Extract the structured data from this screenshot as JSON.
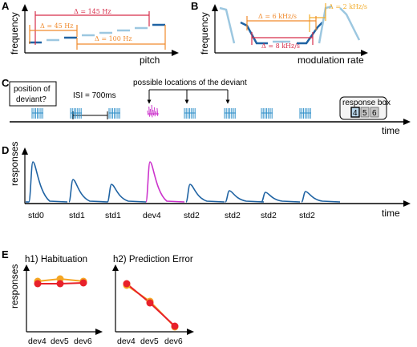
{
  "colors": {
    "red": "#d62d4a",
    "orange": "#f08a2c",
    "dark_blue": "#1f63a3",
    "light_blue": "#9cc7e0",
    "stim_blue": "#2e8fc9",
    "magenta": "#cc33cc",
    "gold": "#f2ad2c",
    "h_red": "#e8212a",
    "h_orange": "#f5a623"
  },
  "panel_a": {
    "letter": "A",
    "ylabel": "frequency",
    "xlabel": "pitch",
    "delta_145": "Δ = 145 Hz",
    "delta_45": "Δ = 45 Hz",
    "delta_100": "Δ = 100 Hz"
  },
  "panel_b": {
    "letter": "B",
    "ylabel": "frequency",
    "xlabel": "modulation rate",
    "delta_2": "Δ = 2 kHz/s",
    "delta_6": "Δ = 6 kHz/s",
    "delta_8": "Δ = 8 kHz/s"
  },
  "panel_c": {
    "letter": "C",
    "position_box": [
      "position of",
      "deviant?"
    ],
    "isi_label": "ISI = 700ms",
    "possible_locations": "possible locations of the deviant",
    "response_box_title": "response box",
    "response_keys": [
      "4",
      "5",
      "6"
    ],
    "time_label": "time"
  },
  "panel_d": {
    "letter": "D",
    "ylabel": "responses",
    "time_label": "time",
    "stimuli": [
      "std0",
      "std1",
      "std1",
      "dev4",
      "std2",
      "std2",
      "std2",
      "std2"
    ]
  },
  "panel_e": {
    "letter": "E",
    "ylabel": "responses",
    "h1_title": "h1) Habituation",
    "h2_title": "h2) Prediction Error",
    "x_ticks": [
      "dev4",
      "dev5",
      "dev6"
    ]
  }
}
